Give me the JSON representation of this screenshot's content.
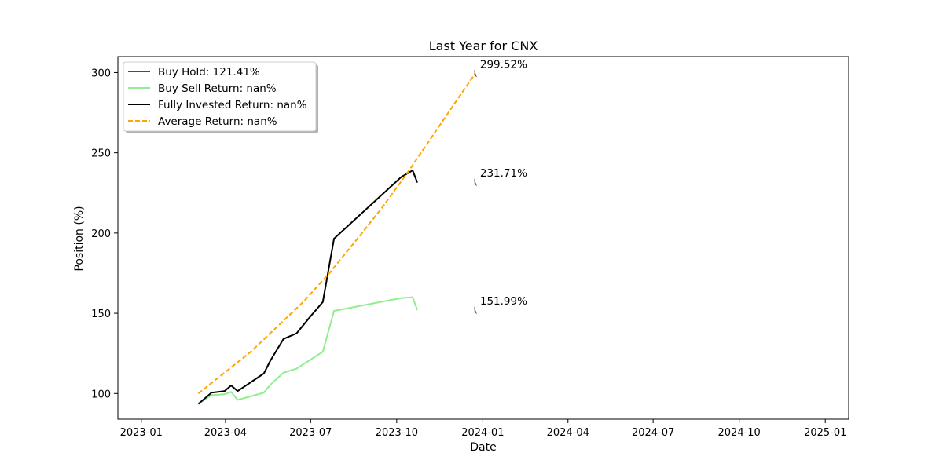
{
  "chart_data": {
    "type": "line",
    "title": "Last Year for CNX",
    "xlabel": "Date",
    "ylabel": "Position (%)",
    "x_axis_type": "date",
    "xlim": [
      "2022-12-07",
      "2025-01-26"
    ],
    "ylim": [
      84,
      310
    ],
    "x_ticks": [
      "2023-01-01",
      "2023-04-01",
      "2023-07-01",
      "2023-10-01",
      "2024-01-01",
      "2024-04-01",
      "2024-07-01",
      "2024-10-01",
      "2025-01-01"
    ],
    "x_tick_labels": [
      "2023-01",
      "2023-04",
      "2023-07",
      "2023-10",
      "2024-01",
      "2024-04",
      "2024-07",
      "2024-10",
      "2025-01"
    ],
    "y_ticks": [
      100,
      150,
      200,
      250,
      300
    ],
    "grid": false,
    "legend_position": "top-left",
    "series": [
      {
        "name": "Buy Hold: 121.41%",
        "color": "#ff0000",
        "style": "solid",
        "points": []
      },
      {
        "name": "Buy Sell Return: nan%",
        "color": "#90ee90",
        "style": "solid",
        "points": [
          [
            "2023-03-03",
            93.5
          ],
          [
            "2023-03-17",
            99
          ],
          [
            "2023-03-31",
            99.5
          ],
          [
            "2023-04-07",
            101
          ],
          [
            "2023-04-14",
            96
          ],
          [
            "2023-05-12",
            100.5
          ],
          [
            "2023-05-19",
            105.5
          ],
          [
            "2023-06-02",
            113
          ],
          [
            "2023-06-16",
            115.5
          ],
          [
            "2023-07-14",
            126
          ],
          [
            "2023-07-26",
            151.5
          ],
          [
            "2023-10-06",
            159.5
          ],
          [
            "2023-10-18",
            160
          ],
          [
            "2023-10-23",
            152
          ]
        ]
      },
      {
        "name": "Fully Invested Return: nan%",
        "color": "#000000",
        "style": "solid",
        "points": [
          [
            "2023-03-03",
            93.5
          ],
          [
            "2023-03-17",
            100.5
          ],
          [
            "2023-03-31",
            101.5
          ],
          [
            "2023-04-07",
            105
          ],
          [
            "2023-04-14",
            101.5
          ],
          [
            "2023-05-12",
            112.5
          ],
          [
            "2023-05-19",
            120.5
          ],
          [
            "2023-06-02",
            134
          ],
          [
            "2023-06-16",
            137.5
          ],
          [
            "2023-06-30",
            147.5
          ],
          [
            "2023-07-14",
            157
          ],
          [
            "2023-07-26",
            196.5
          ],
          [
            "2023-10-06",
            235
          ],
          [
            "2023-10-18",
            239
          ],
          [
            "2023-10-23",
            231.5
          ]
        ]
      },
      {
        "name": "Average Return: nan%",
        "color": "#ffa500",
        "style": "dashed",
        "points": [
          [
            "2023-03-03",
            100
          ],
          [
            "2023-03-31",
            113
          ],
          [
            "2023-04-28",
            126
          ],
          [
            "2023-05-26",
            141.5
          ],
          [
            "2023-06-23",
            157
          ],
          [
            "2023-07-21",
            175
          ],
          [
            "2023-08-18",
            195
          ],
          [
            "2023-09-15",
            215.5
          ],
          [
            "2023-10-13",
            238
          ],
          [
            "2023-11-10",
            262
          ],
          [
            "2023-12-08",
            286
          ],
          [
            "2023-12-24",
            299.5
          ]
        ]
      }
    ],
    "annotations": [
      {
        "x": "2023-12-24",
        "y": 299.52,
        "text": "299.52%"
      },
      {
        "x": "2023-12-24",
        "y": 231.71,
        "text": "231.71%"
      },
      {
        "x": "2023-12-24",
        "y": 151.99,
        "text": "151.99%"
      }
    ]
  }
}
